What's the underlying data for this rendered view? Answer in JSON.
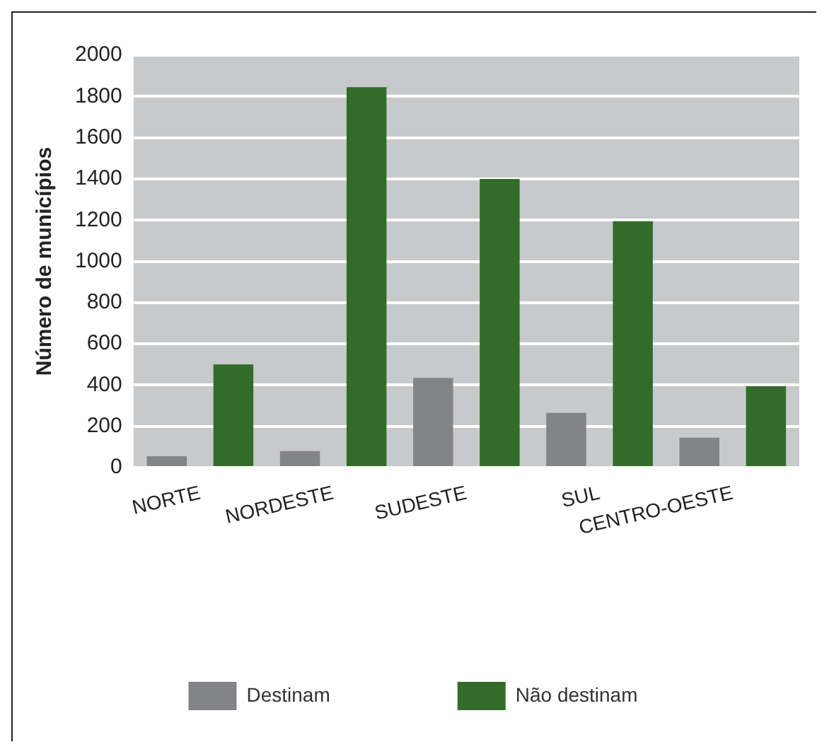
{
  "chart_data": {
    "type": "bar",
    "ylabel": "Número de municípios",
    "categories": [
      "NORTE",
      "NORDESTE",
      "SUDESTE",
      "SUL",
      "CENTRO-OESTE"
    ],
    "series": [
      {
        "name": "Destinam",
        "color": "#838487",
        "values": [
          55,
          80,
          435,
          265,
          145
        ]
      },
      {
        "name": "Não destinam",
        "color": "#336b2a",
        "values": [
          500,
          1845,
          1400,
          1195,
          395
        ]
      }
    ],
    "ylim": [
      0,
      2000
    ],
    "yticks": [
      0,
      200,
      400,
      600,
      800,
      1000,
      1200,
      1400,
      1600,
      1800,
      2000
    ],
    "grid": "y",
    "legend": "bottom"
  }
}
